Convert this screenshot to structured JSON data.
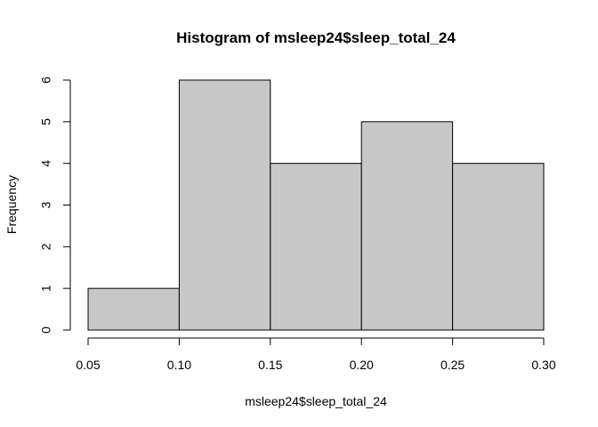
{
  "chart_data": {
    "type": "bar",
    "title": "Histogram of msleep24$sleep_total_24",
    "xlabel": "msleep24$sleep_total_24",
    "ylabel": "Frequency",
    "bins": [
      {
        "from": 0.05,
        "to": 0.1,
        "count": 1
      },
      {
        "from": 0.1,
        "to": 0.15,
        "count": 6
      },
      {
        "from": 0.15,
        "to": 0.2,
        "count": 4
      },
      {
        "from": 0.2,
        "to": 0.25,
        "count": 5
      },
      {
        "from": 0.25,
        "to": 0.3,
        "count": 4
      }
    ],
    "xlim": [
      0.05,
      0.3
    ],
    "ylim": [
      0,
      6
    ],
    "x_ticks": [
      "0.05",
      "0.10",
      "0.15",
      "0.20",
      "0.25",
      "0.30"
    ],
    "y_ticks": [
      "0",
      "1",
      "2",
      "3",
      "4",
      "5",
      "6"
    ],
    "grid": false,
    "bar_fill": "#c8c8c8",
    "bar_stroke": "#000000"
  }
}
